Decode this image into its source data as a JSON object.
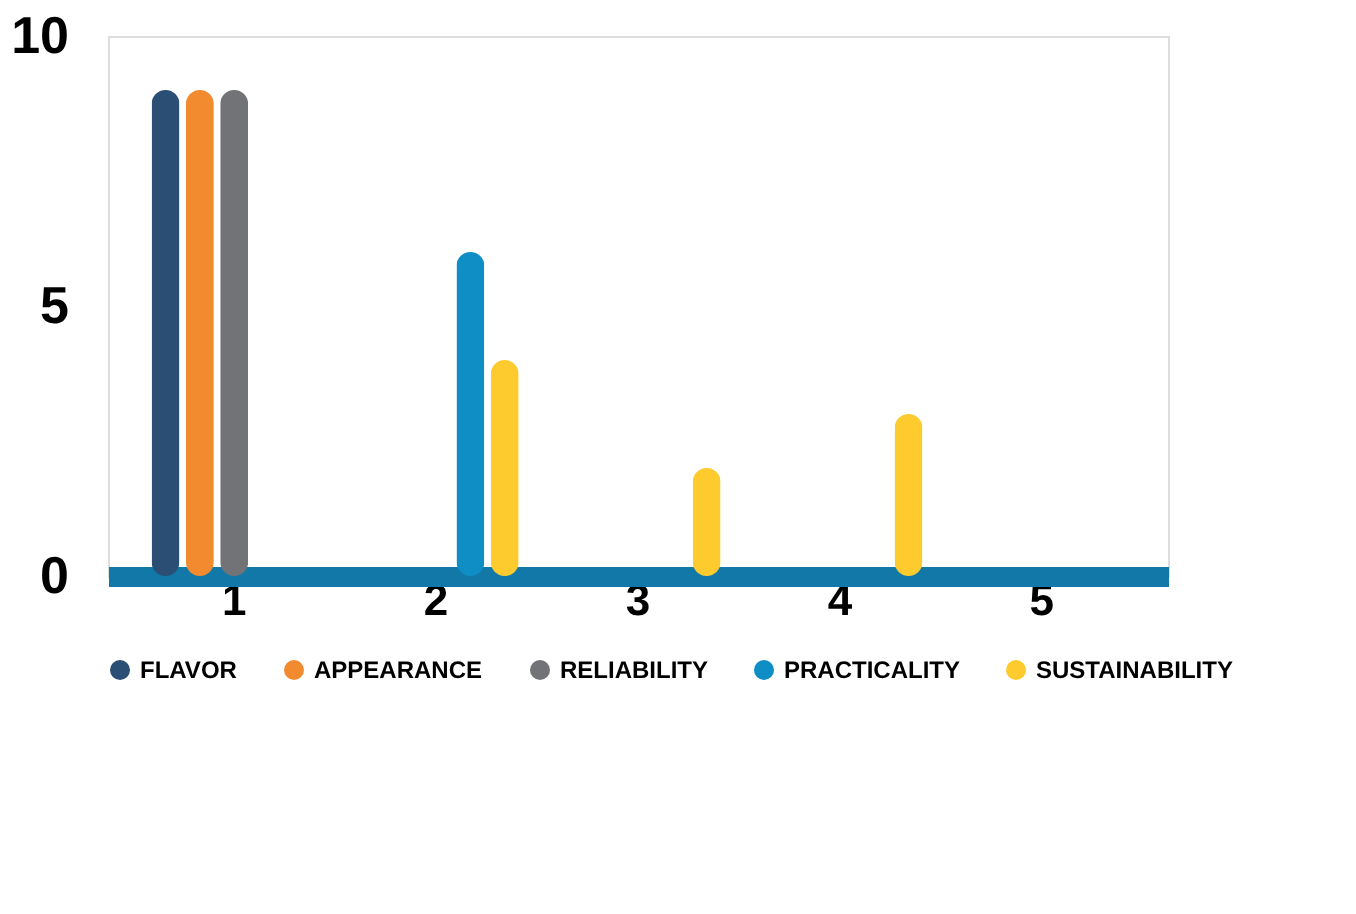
{
  "chart_data": {
    "type": "bar",
    "categories": [
      "1",
      "2",
      "3",
      "4",
      "5"
    ],
    "series": [
      {
        "name": "FLAVOR",
        "color": "#2a4e74",
        "values": [
          9,
          null,
          null,
          null,
          null
        ]
      },
      {
        "name": "APPEARANCE",
        "color": "#f28a30",
        "values": [
          9,
          null,
          null,
          null,
          null
        ]
      },
      {
        "name": "RELIABILITY",
        "color": "#727377",
        "values": [
          9,
          null,
          null,
          null,
          null
        ]
      },
      {
        "name": "PRACTICALITY",
        "color": "#0e8ec4",
        "values": [
          null,
          6,
          null,
          null,
          null
        ]
      },
      {
        "name": "SUSTAINABILITY",
        "color": "#fdcb2e",
        "values": [
          null,
          4,
          2,
          3,
          null
        ]
      }
    ],
    "ylim": [
      0,
      10
    ],
    "yticks": [
      0,
      5,
      10
    ],
    "grid": false,
    "legend": "bottom"
  }
}
